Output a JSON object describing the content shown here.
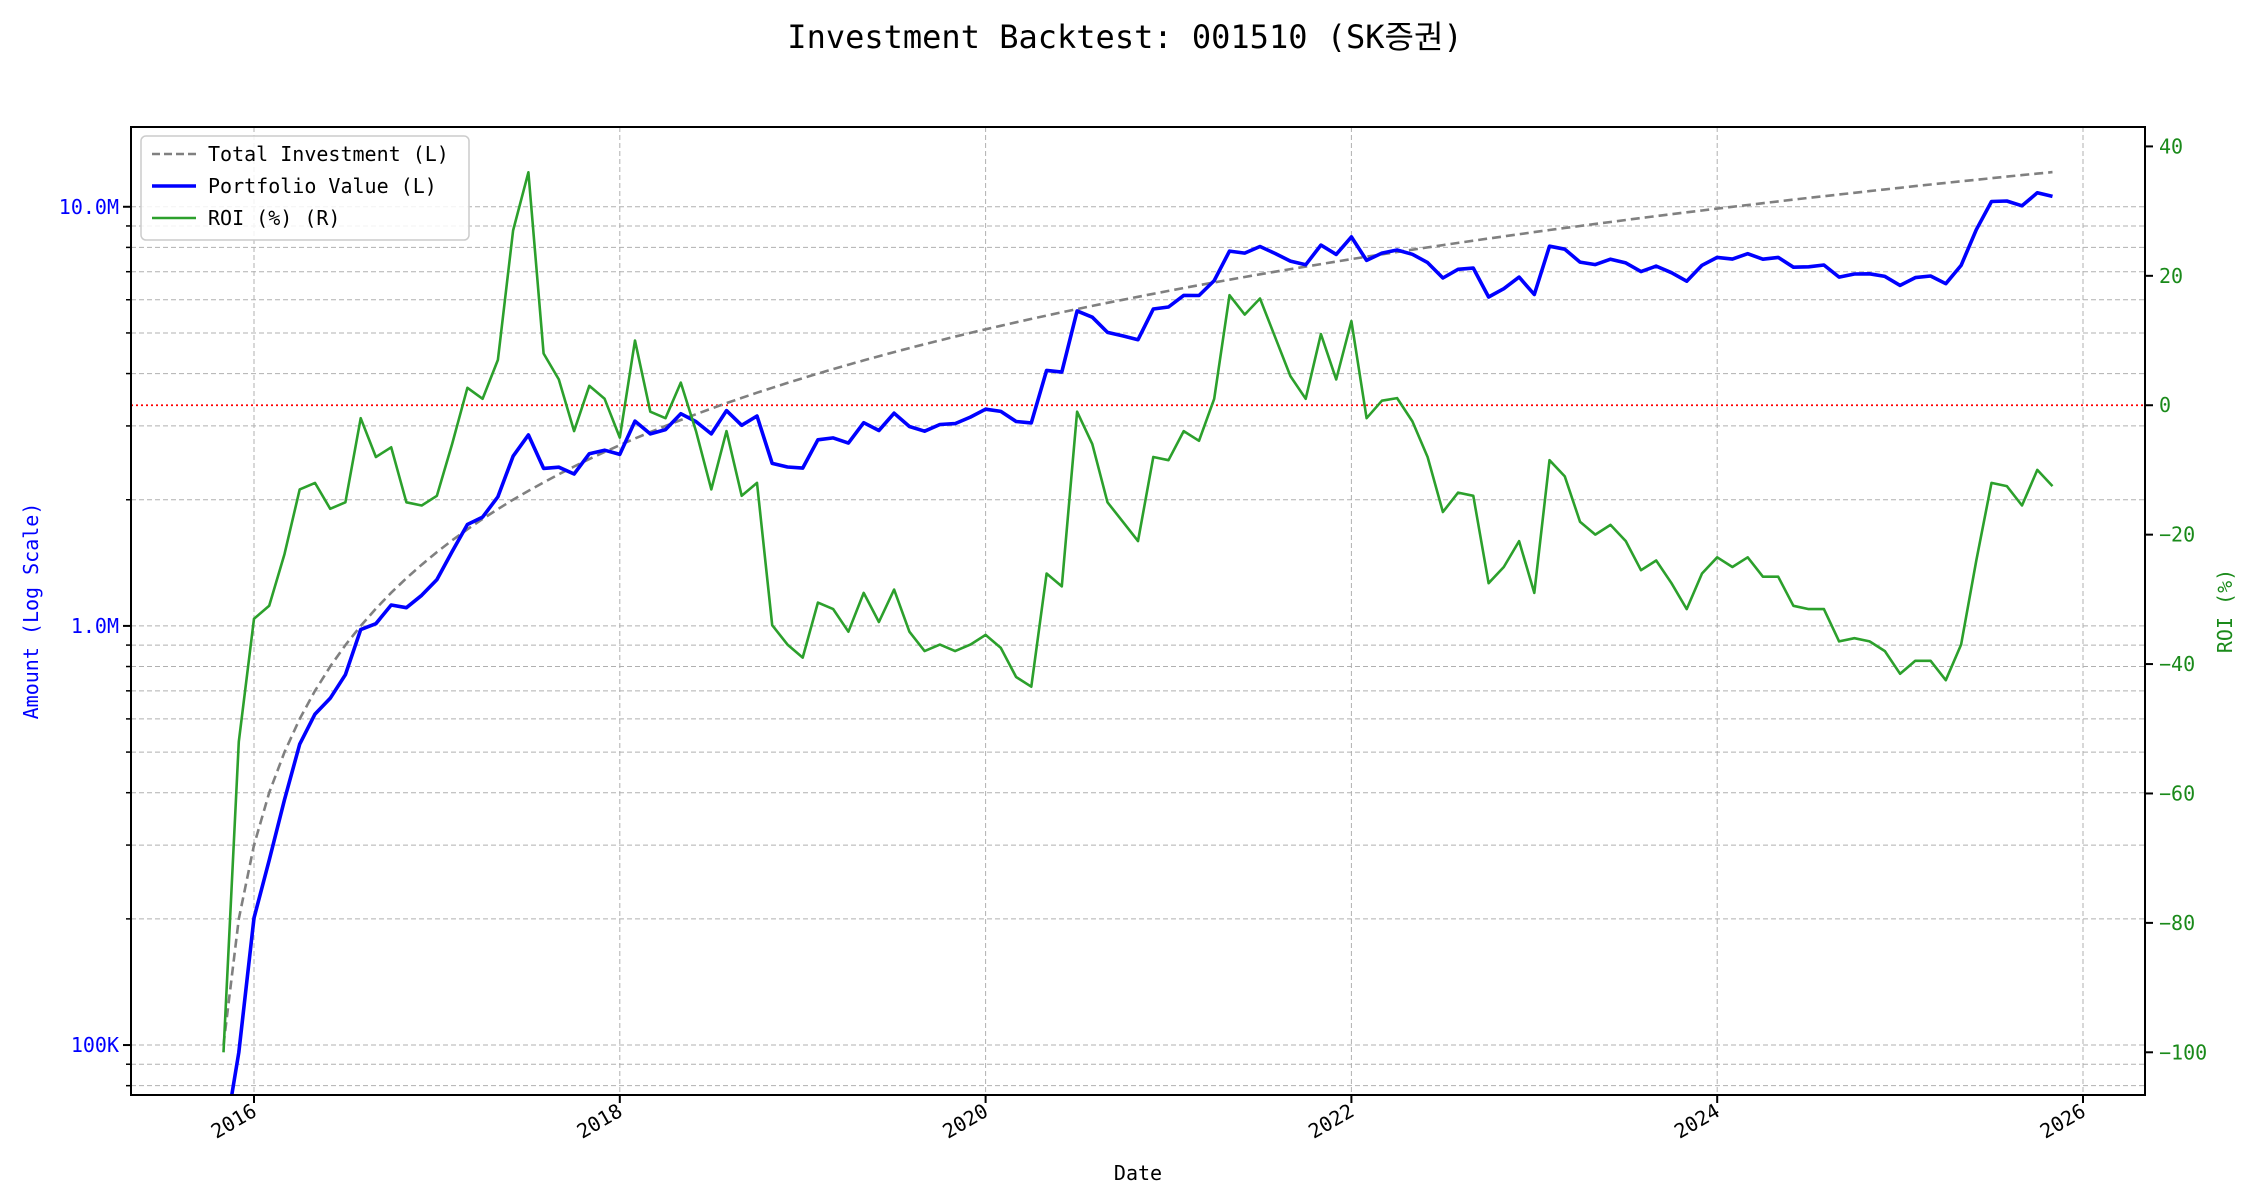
{
  "chart_data": {
    "type": "line",
    "title": "Investment Backtest: 001510 (SK증권)",
    "xlabel": "Date",
    "ylabel_left": "Amount (Log Scale)",
    "ylabel_right": "ROI (%)",
    "x_start": "2015-11",
    "x_frequency": "monthly",
    "x_ticks": [
      "2016",
      "2018",
      "2020",
      "2022",
      "2024",
      "2026"
    ],
    "y_left_scale": "log",
    "y_left_range": [
      76000,
      15500000
    ],
    "y_left_ticks": [
      {
        "value": 100000,
        "label": "100K"
      },
      {
        "value": 1000000,
        "label": "1.0M"
      },
      {
        "value": 10000000,
        "label": "10.0M"
      }
    ],
    "y_right_range": [
      -106.6,
      43
    ],
    "y_right_ticks": [
      {
        "value": 40,
        "label": "40"
      },
      {
        "value": 20,
        "label": "20"
      },
      {
        "value": 0,
        "label": "0"
      },
      {
        "value": -20,
        "label": "−20"
      },
      {
        "value": -40,
        "label": "−40"
      },
      {
        "value": -60,
        "label": "−60"
      },
      {
        "value": -80,
        "label": "−80"
      },
      {
        "value": -100,
        "label": "−100"
      }
    ],
    "grid": true,
    "legend_position": "top-left",
    "reference_line": {
      "axis": "right",
      "value": 0,
      "color": "#ff0000"
    },
    "monthly_investment": 100000,
    "series": [
      {
        "name": "Total Investment (L)",
        "axis": "left",
        "color": "#808080",
        "style": "dashed",
        "derived": "cumulative monthly_investment"
      },
      {
        "name": "Portfolio Value (L)",
        "axis": "left",
        "color": "#0000ff",
        "style": "solid",
        "derived": "total_investment * (1 + ROI/100)"
      },
      {
        "name": "ROI (%) (R)",
        "axis": "right",
        "color": "#2ca02c",
        "style": "solid",
        "values": [
          -100,
          -52,
          -33,
          -31,
          -23,
          -13,
          -12,
          -16,
          -15,
          -2,
          -8,
          -6.5,
          -15,
          -15.5,
          -14,
          -6,
          2.7,
          1,
          7,
          27,
          36,
          8,
          4,
          -4,
          3,
          1,
          -5,
          10,
          -1,
          -2,
          3.5,
          -4,
          -13,
          -4,
          -14,
          -12,
          -34,
          -37,
          -39,
          -30.5,
          -31.5,
          -35,
          -29,
          -33.5,
          -28.5,
          -35,
          -38,
          -37,
          -38,
          -37,
          -35.5,
          -37.5,
          -42,
          -43.5,
          -26,
          -28,
          -1,
          -6,
          -15,
          -18,
          -21,
          -8,
          -8.5,
          -4,
          -5.5,
          1,
          17,
          14,
          16.5,
          10.5,
          4.5,
          1,
          11,
          4,
          13,
          -2,
          0.7,
          1.1,
          -2.5,
          -8,
          -16.5,
          -13.5,
          -14,
          -27.5,
          -25,
          -21,
          -29,
          -8.5,
          -11,
          -18,
          -20,
          -18.5,
          -21,
          -25.5,
          -24,
          -27.5,
          -31.5,
          -26,
          -23.5,
          -25,
          -23.5,
          -26.5,
          -26.5,
          -31,
          -31.5,
          -31.5,
          -36.5,
          -36,
          -36.5,
          -38,
          -41.5,
          -39.5,
          -39.5,
          -42.5,
          -37,
          -24,
          -12,
          -12.5,
          -15.5,
          -10,
          -12.5
        ]
      }
    ]
  }
}
